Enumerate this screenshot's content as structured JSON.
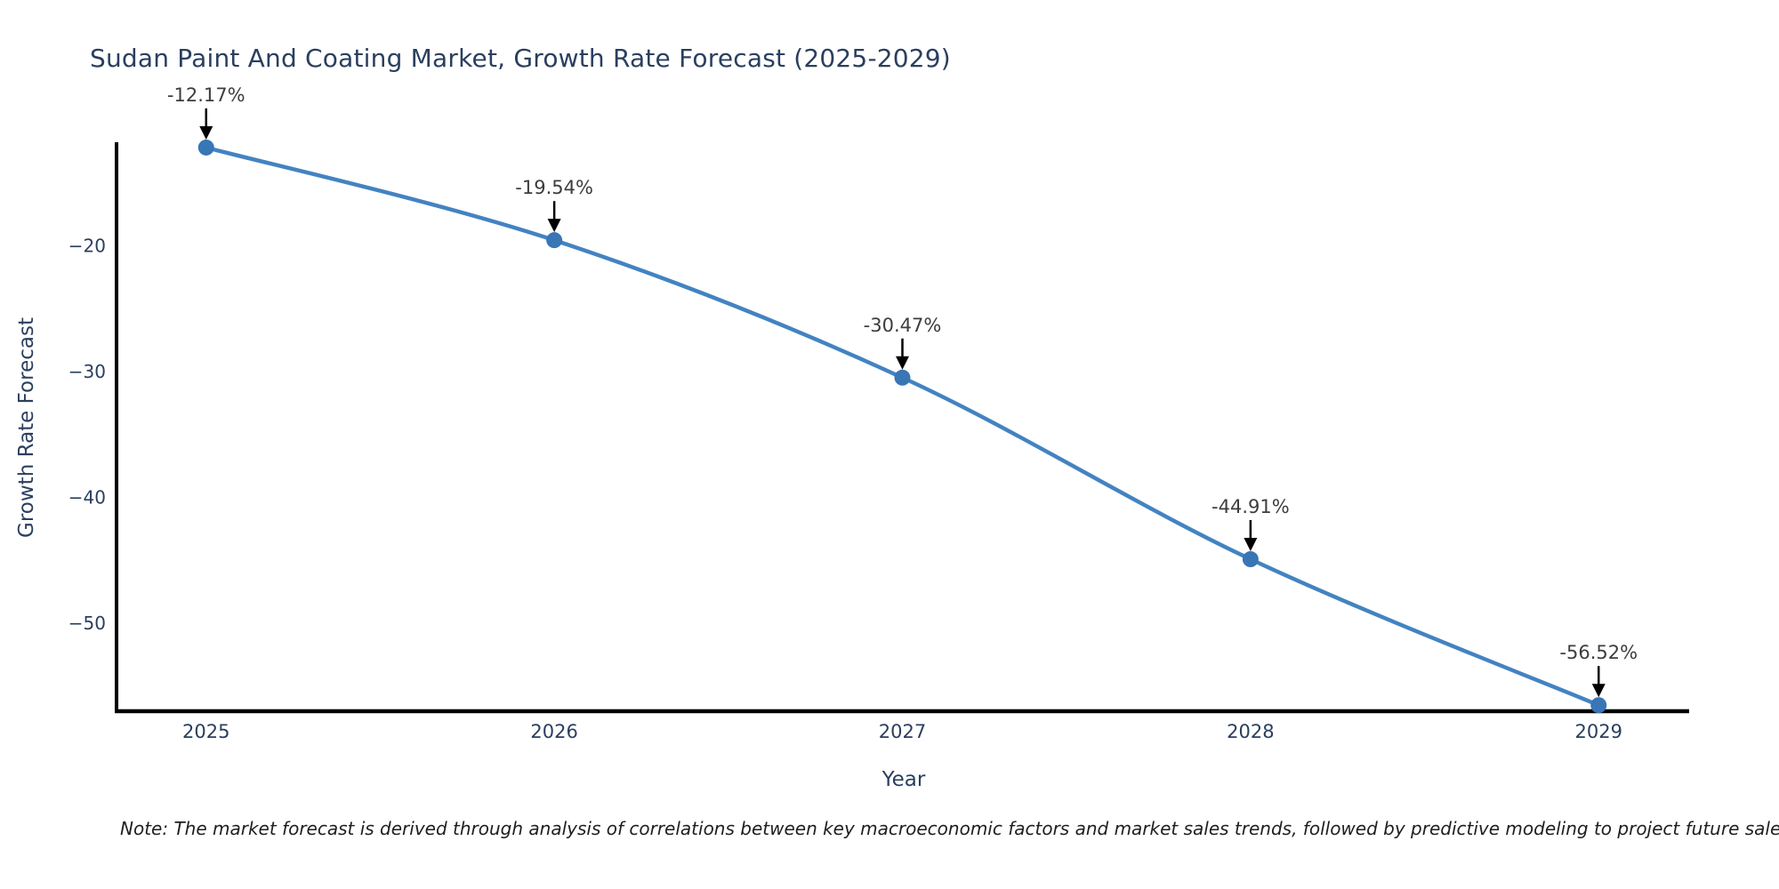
{
  "title": "Sudan Paint And Coating Market, Growth Rate Forecast (2025-2029)",
  "note": "Note: The market forecast is derived through analysis of correlations between key macroeconomic factors and market sales trends, followed by predictive modeling to project future sales.",
  "chart_data": {
    "type": "line",
    "title": "Sudan Paint And Coating Market, Growth Rate Forecast (2025-2029)",
    "xlabel": "Year",
    "ylabel": "Growth Rate Forecast",
    "x": [
      2025,
      2026,
      2027,
      2028,
      2029
    ],
    "series": [
      {
        "name": "Growth Rate Forecast",
        "values": [
          -12.17,
          -19.54,
          -30.47,
          -44.91,
          -56.52
        ]
      }
    ],
    "point_labels": [
      "-12.17%",
      "-19.54%",
      "-30.47%",
      "-44.91%",
      "-56.52%"
    ],
    "xtick_labels": [
      "2025",
      "2026",
      "2027",
      "2028",
      "2029"
    ],
    "yticks": [
      -20,
      -30,
      -40,
      -50
    ],
    "ytick_labels": [
      "−20",
      "−30",
      "−40",
      "−50"
    ],
    "xlim": [
      2024.74,
      2029.26
    ],
    "ylim": [
      -57.0,
      -11.75
    ],
    "grid": false,
    "legend": "none",
    "line_shape": "spline",
    "colors": {
      "line": "#4383c1",
      "marker": "#3876b5",
      "axis": "#000000",
      "title_text": "#2a3f5f",
      "annotation_text": "#3d3d3d",
      "annotation_arrow": "#000000",
      "background": "#ffffff"
    }
  }
}
